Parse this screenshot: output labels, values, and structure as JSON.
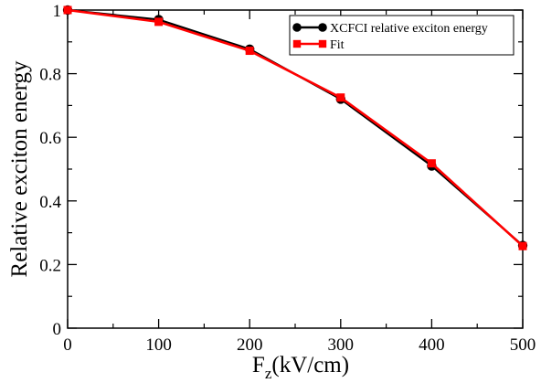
{
  "chart_data": {
    "type": "line",
    "title": "",
    "xlabel_main": "F",
    "xlabel_sub": "z",
    "xlabel_unit": "(kV/cm)",
    "ylabel": "Relative exciton energy",
    "xlim": [
      0,
      500
    ],
    "ylim": [
      0,
      1
    ],
    "x_ticks": [
      0,
      100,
      200,
      300,
      400,
      500
    ],
    "x_tick_labels": [
      "0",
      "100",
      "200",
      "300",
      "400",
      "500"
    ],
    "y_ticks": [
      0,
      0.2,
      0.4,
      0.6,
      0.8,
      1
    ],
    "y_tick_labels": [
      "0",
      "0.2",
      "0.4",
      "0.6",
      "0.8",
      "1"
    ],
    "grid": false,
    "legend_position": "top-right",
    "series": [
      {
        "name": "XCFCI relative exciton energy",
        "color": "#000000",
        "marker": "circle",
        "x": [
          0,
          100,
          200,
          300,
          400,
          500
        ],
        "y": [
          1.0,
          0.97,
          0.877,
          0.72,
          0.51,
          0.26
        ]
      },
      {
        "name": "Fit",
        "color": "#ff0000",
        "marker": "square",
        "x": [
          0,
          100,
          200,
          300,
          400,
          500
        ],
        "y": [
          1.0,
          0.963,
          0.872,
          0.725,
          0.518,
          0.258
        ]
      }
    ]
  }
}
